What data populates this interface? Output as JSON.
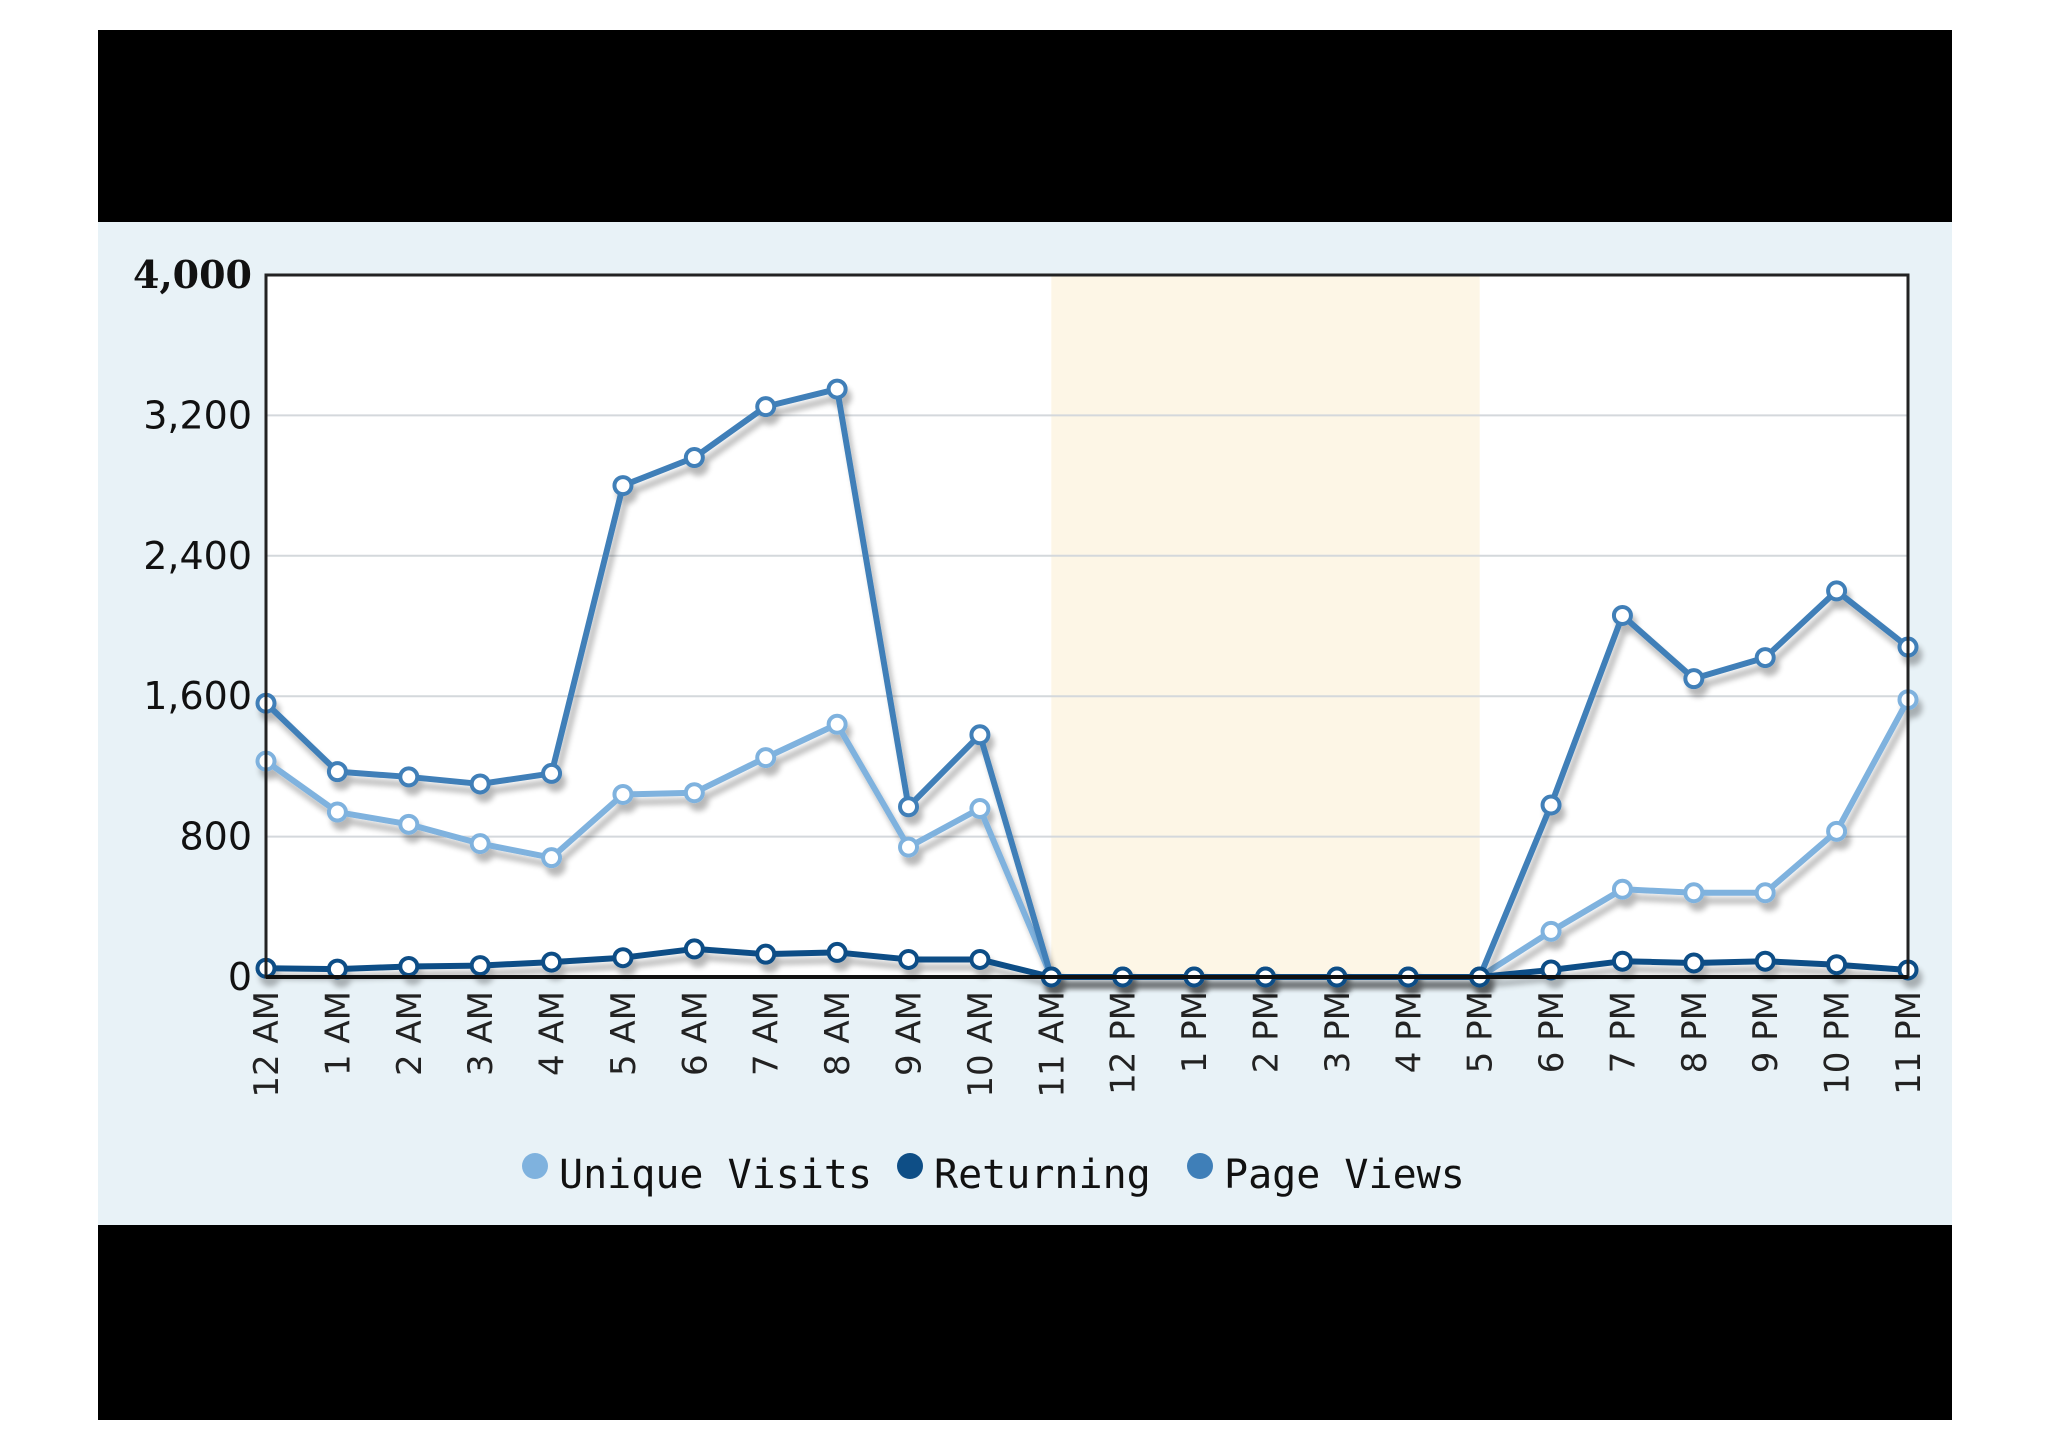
{
  "chart_data": {
    "type": "line",
    "categories": [
      "12 AM",
      "1 AM",
      "2 AM",
      "3 AM",
      "4 AM",
      "5 AM",
      "6 AM",
      "7 AM",
      "8 AM",
      "9 AM",
      "10 AM",
      "11 AM",
      "12 PM",
      "1 PM",
      "2 PM",
      "3 PM",
      "4 PM",
      "5 PM",
      "6 PM",
      "7 PM",
      "8 PM",
      "9 PM",
      "10 PM",
      "11 PM"
    ],
    "y_ticks": [
      "0",
      "800",
      "1,600",
      "2,400",
      "3,200",
      "4,000"
    ],
    "y_tick_values": [
      0,
      800,
      1600,
      2400,
      3200,
      4000
    ],
    "ylim": [
      0,
      4000
    ],
    "grid": true,
    "legend_position": "bottom-center",
    "highlight_range": [
      "11 AM",
      "5 PM"
    ],
    "series": [
      {
        "name": "Unique Visits",
        "color": "#7fb2de",
        "values": [
          1230,
          940,
          870,
          760,
          680,
          1040,
          1050,
          1250,
          1440,
          740,
          960,
          0,
          0,
          0,
          0,
          0,
          0,
          0,
          260,
          500,
          480,
          480,
          830,
          1580
        ]
      },
      {
        "name": "Returning",
        "color": "#0e4e86",
        "values": [
          50,
          45,
          60,
          65,
          85,
          110,
          160,
          130,
          140,
          100,
          100,
          0,
          0,
          0,
          0,
          0,
          0,
          0,
          40,
          90,
          80,
          90,
          70,
          40
        ]
      },
      {
        "name": "Page Views",
        "color": "#3f7fb8",
        "values": [
          1560,
          1170,
          1140,
          1100,
          1160,
          2800,
          2960,
          3250,
          3350,
          970,
          1380,
          0,
          0,
          0,
          0,
          0,
          0,
          0,
          980,
          2060,
          1700,
          1820,
          2200,
          1880
        ]
      }
    ],
    "colors": {
      "plot_background": "#ffffff",
      "panel_background": "#e8f2f7",
      "highlight": "#fdf6e6",
      "grid": "#d4d8dc",
      "marker_fill": "#ffffff"
    }
  }
}
